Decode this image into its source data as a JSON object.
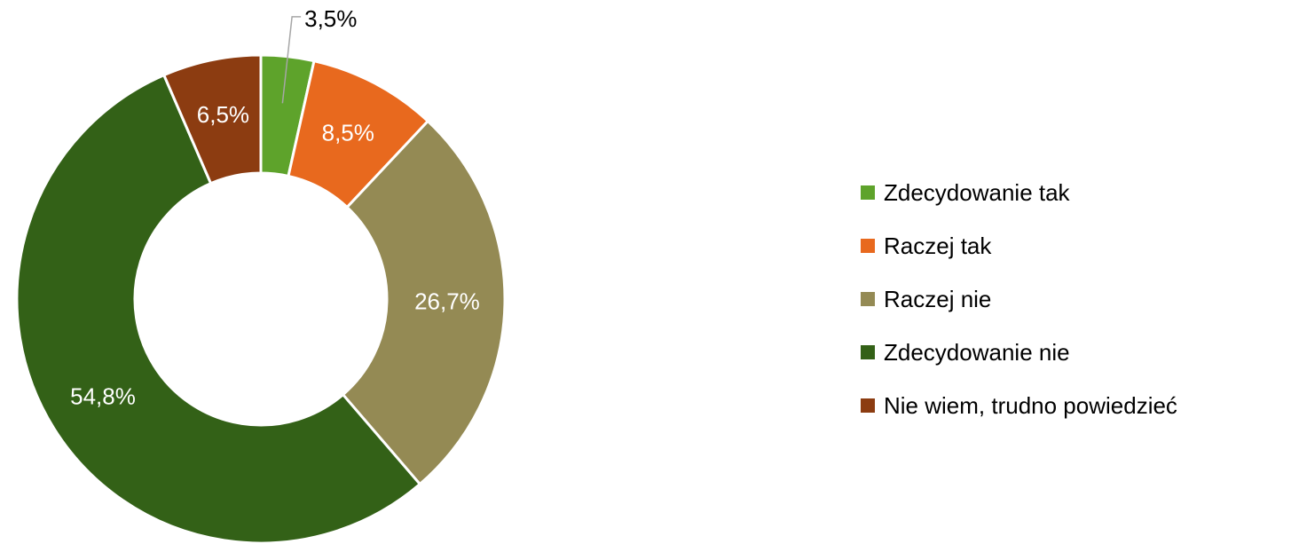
{
  "chart_data": {
    "type": "donut",
    "categories": [
      "Zdecydowanie tak",
      "Raczej tak",
      "Raczej nie",
      "Zdecydowanie nie",
      "Nie wiem, trudno powiedzieć"
    ],
    "values": [
      3.5,
      8.5,
      26.7,
      54.8,
      6.5
    ],
    "value_labels": [
      "3,5%",
      "8,5%",
      "26,7%",
      "54,8%",
      "6,5%"
    ],
    "colors": [
      "#5ea32b",
      "#e8691e",
      "#948a54",
      "#336117",
      "#8c3c11"
    ],
    "legend": "right"
  }
}
